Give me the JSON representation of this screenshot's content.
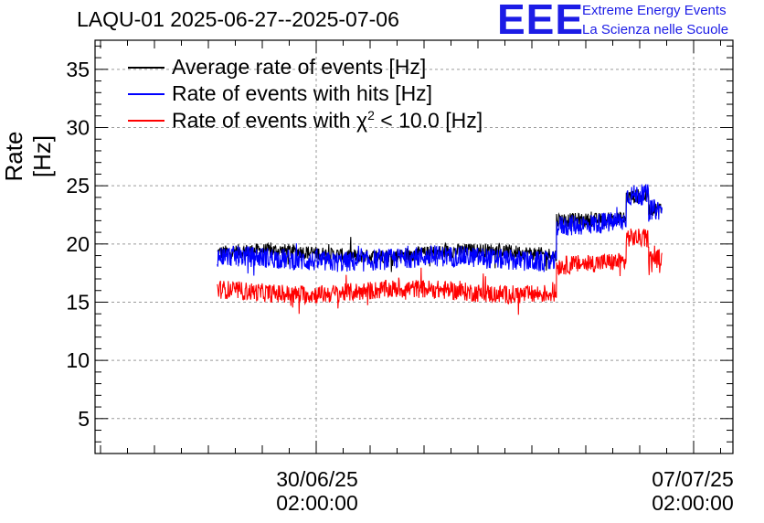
{
  "title": "LAQU-01 2025-06-27--2025-07-06",
  "logo": {
    "mark": "EEE",
    "line1": "Extreme Energy Events",
    "line2": "La Scienza nelle Scuole"
  },
  "chart_data": {
    "type": "line",
    "ylabel": "Rate [Hz]",
    "xlabel": "",
    "ylim": [
      2,
      37.5
    ],
    "yticks": [
      5,
      10,
      15,
      20,
      25,
      30,
      35
    ],
    "xlim_days": [
      -4.0,
      1.75
    ],
    "x_ticks": [
      {
        "date": "30/06/25",
        "time": "02:00:00"
      },
      {
        "date": "07/07/25",
        "time": "02:00:00"
      }
    ],
    "grid": true,
    "legend_position": "top-left",
    "series": [
      {
        "name": "Average rate of events [Hz]",
        "color": "#000000",
        "segments": [
          {
            "x": [
              "2025-06-28 06:00",
              "2025-07-04 13:00"
            ],
            "level": 19.2
          },
          {
            "x": [
              "2025-07-04 13:00",
              "2025-07-05 20:00"
            ],
            "level": 22.3
          },
          {
            "x": [
              "2025-07-05 20:00",
              "2025-07-06 06:00"
            ],
            "level": 24.1
          },
          {
            "x": [
              "2025-07-06 06:00",
              "2025-07-06 12:00"
            ],
            "level": 22.9
          }
        ],
        "noise": 0.6
      },
      {
        "name": "Rate of events with hits [Hz]",
        "color": "#0000ff",
        "segments": [
          {
            "x": [
              "2025-06-28 06:00",
              "2025-07-04 13:00"
            ],
            "level": 18.7
          },
          {
            "x": [
              "2025-07-04 13:00",
              "2025-07-05 20:00"
            ],
            "level": 21.8
          },
          {
            "x": [
              "2025-07-05 20:00",
              "2025-07-06 06:00"
            ],
            "level": 24.0
          },
          {
            "x": [
              "2025-07-06 06:00",
              "2025-07-06 12:00"
            ],
            "level": 22.7
          }
        ],
        "noise": 0.9
      },
      {
        "name": "Rate of events with χ² < 10.0 [Hz]",
        "label_prefix": "Rate of events with ",
        "label_chi": "χ",
        "label_sup": "2",
        "label_suffix": " < 10.0 [Hz]",
        "color": "#ff0000",
        "segments": [
          {
            "x": [
              "2025-06-28 06:00",
              "2025-07-04 13:00"
            ],
            "level": 15.9
          },
          {
            "x": [
              "2025-07-04 13:00",
              "2025-07-05 20:00"
            ],
            "level": 18.2
          },
          {
            "x": [
              "2025-07-05 20:00",
              "2025-07-06 06:00"
            ],
            "level": 20.3
          },
          {
            "x": [
              "2025-07-06 06:00",
              "2025-07-06 12:00"
            ],
            "level": 18.6
          }
        ],
        "noise": 0.8
      }
    ]
  }
}
